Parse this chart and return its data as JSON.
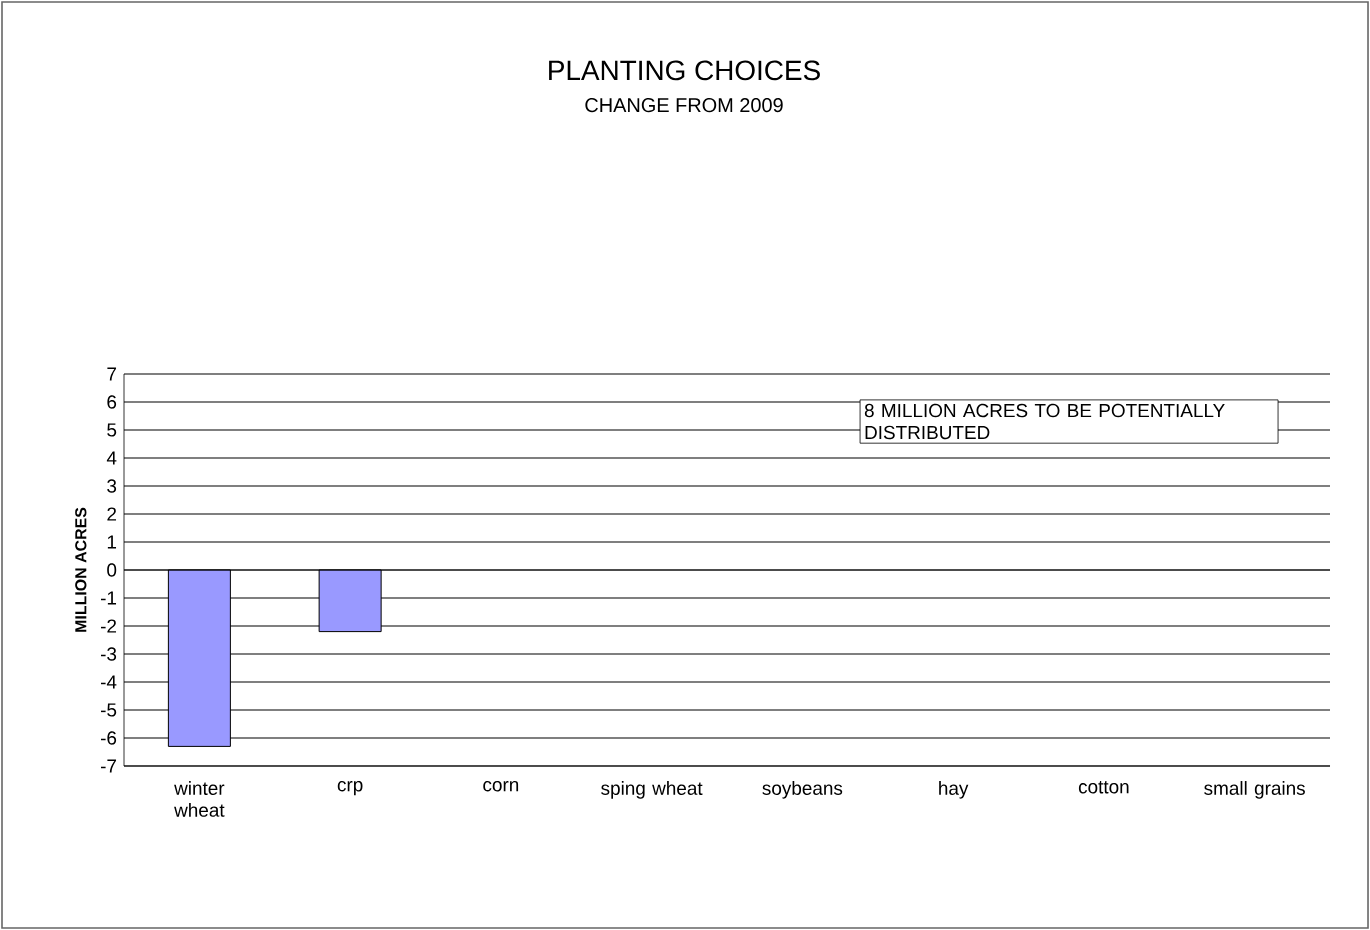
{
  "chart_data": {
    "type": "bar",
    "title": "PLANTING CHOICES",
    "subtitle": "CHANGE FROM 2009",
    "ylabel": "MILLION ACRES",
    "categories": [
      "winter wheat",
      "crp",
      "corn",
      "sping wheat",
      "soybeans",
      "hay",
      "cotton",
      "small grains"
    ],
    "values": [
      -6.3,
      -2.2,
      null,
      null,
      null,
      null,
      null,
      null
    ],
    "color": "#9999ff",
    "ylim": [
      -7,
      7
    ],
    "yticks": [
      -7,
      -6,
      -5,
      -4,
      -3,
      -2,
      -1,
      0,
      1,
      2,
      3,
      4,
      5,
      6,
      7
    ],
    "grid": "y",
    "annotations": [
      "8 MILLION ACRES TO BE POTENTIALLY DISTRIBUTED"
    ]
  }
}
